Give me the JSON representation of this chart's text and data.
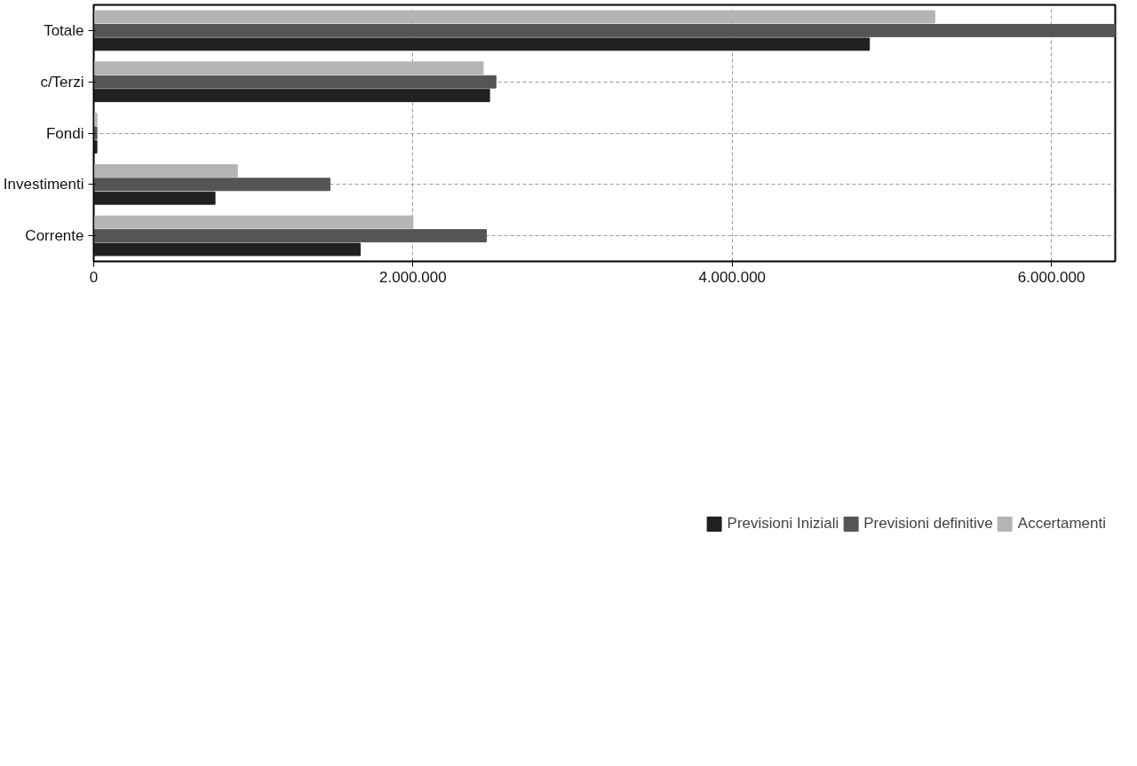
{
  "chart_data": {
    "type": "bar",
    "orientation": "horizontal",
    "categories": [
      "Totale",
      "c/Terzi",
      "Fondi",
      "Investimenti",
      "Corrente"
    ],
    "series": [
      {
        "name": "Previsioni Iniziali",
        "color": "#202020",
        "values": [
          4860000,
          2480000,
          20000,
          760000,
          1670000
        ]
      },
      {
        "name": "Previsioni definitive",
        "color": "#555555",
        "values": [
          6400000,
          2520000,
          20000,
          1480000,
          2460000
        ]
      },
      {
        "name": "Accertamenti",
        "color": "#b4b4b4",
        "values": [
          5270000,
          2440000,
          20000,
          900000,
          2000000
        ]
      }
    ],
    "xlim": [
      0,
      6400000
    ],
    "xticks": [
      {
        "value": 0,
        "label": "0"
      },
      {
        "value": 2000000,
        "label": "2.000.000"
      },
      {
        "value": 4000000,
        "label": "4.000.000"
      },
      {
        "value": 6000000,
        "label": "6.000.000"
      }
    ],
    "grid": true,
    "legend": "bottom"
  }
}
